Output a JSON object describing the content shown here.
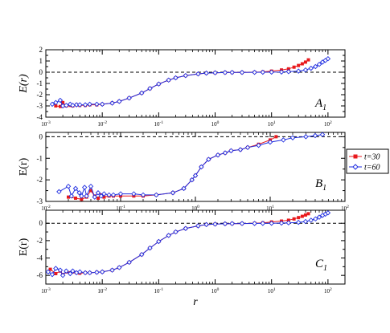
{
  "chart_data": [
    {
      "type": "line",
      "panel_label": "A",
      "panel_sub": "1",
      "ylabel": "E(r)",
      "xscale": "log",
      "xlim": [
        0.001,
        200
      ],
      "ylim": [
        -4,
        2
      ],
      "yticks": [
        -4,
        -3,
        -2,
        -1,
        0,
        1,
        2
      ],
      "xtick_exponents": [
        -3,
        -2,
        -1,
        0,
        1,
        2
      ],
      "reference_line": 0,
      "series": [
        {
          "name": "t=30",
          "color": "#e8191c",
          "marker": "square",
          "x": [
            0.0015,
            0.0018,
            0.002,
            0.0023,
            0.0027,
            0.003,
            0.0035,
            0.004,
            0.005,
            0.006,
            0.008,
            0.01,
            0.015,
            0.02,
            0.03,
            0.05,
            0.07,
            0.1,
            0.15,
            0.2,
            0.3,
            0.5,
            0.7,
            1,
            1.5,
            2,
            3,
            5,
            7,
            10,
            15,
            20,
            25,
            30,
            35,
            40,
            45
          ],
          "y": [
            -3.0,
            -3.05,
            -2.7,
            -3.0,
            -2.95,
            -3.0,
            -2.9,
            -2.95,
            -2.95,
            -2.9,
            -2.9,
            -2.85,
            -2.75,
            -2.6,
            -2.3,
            -1.85,
            -1.45,
            -1.05,
            -0.7,
            -0.5,
            -0.3,
            -0.15,
            -0.08,
            -0.05,
            -0.03,
            -0.02,
            -0.02,
            0.0,
            0.03,
            0.1,
            0.2,
            0.3,
            0.45,
            0.6,
            0.75,
            0.9,
            1.1
          ]
        },
        {
          "name": "t=60",
          "color": "#1f2de0",
          "marker": "diamond",
          "x": [
            0.0013,
            0.0015,
            0.0018,
            0.002,
            0.0023,
            0.0027,
            0.003,
            0.0035,
            0.004,
            0.005,
            0.006,
            0.008,
            0.01,
            0.015,
            0.02,
            0.03,
            0.05,
            0.07,
            0.1,
            0.15,
            0.2,
            0.3,
            0.5,
            0.7,
            1,
            1.5,
            2,
            3,
            5,
            7,
            10,
            15,
            20,
            30,
            40,
            50,
            60,
            70,
            80,
            90,
            100
          ],
          "y": [
            -2.85,
            -2.7,
            -2.5,
            -3.0,
            -2.95,
            -2.85,
            -2.95,
            -2.9,
            -2.9,
            -2.9,
            -2.85,
            -2.85,
            -2.85,
            -2.75,
            -2.6,
            -2.3,
            -1.85,
            -1.45,
            -1.05,
            -0.7,
            -0.5,
            -0.3,
            -0.15,
            -0.08,
            -0.05,
            -0.03,
            -0.02,
            -0.02,
            -0.01,
            0.0,
            0.01,
            0.02,
            0.05,
            0.1,
            0.2,
            0.35,
            0.5,
            0.7,
            0.9,
            1.05,
            1.2
          ]
        }
      ]
    },
    {
      "type": "line",
      "panel_label": "B",
      "panel_sub": "1",
      "ylabel": "E(r)",
      "xscale": "log",
      "xlim": [
        0.01,
        100
      ],
      "ylim": [
        -3,
        0.2
      ],
      "yticks": [
        -3,
        -2,
        -1,
        0
      ],
      "xtick_exponents": [
        -2,
        -1,
        0,
        1,
        2
      ],
      "reference_line": 0,
      "series": [
        {
          "name": "t=30",
          "color": "#e8191c",
          "marker": "square",
          "x": [
            0.02,
            0.025,
            0.03,
            0.035,
            0.04,
            0.045,
            0.05,
            0.055,
            0.06,
            0.07,
            0.08,
            0.1,
            0.15,
            0.2,
            0.3,
            0.5,
            0.7,
            0.9,
            1.0,
            1.2,
            1.5,
            2.0,
            2.5,
            3.0,
            4.0,
            5.0,
            7.0,
            10.0,
            12.0
          ],
          "y": [
            -2.8,
            -2.85,
            -2.9,
            -2.8,
            -2.5,
            -2.75,
            -2.85,
            -2.7,
            -2.8,
            -2.75,
            -2.75,
            -2.75,
            -2.75,
            -2.75,
            -2.7,
            -2.6,
            -2.4,
            -2.0,
            -1.8,
            -1.4,
            -1.05,
            -0.85,
            -0.75,
            -0.65,
            -0.6,
            -0.5,
            -0.35,
            -0.15,
            0.0
          ]
        },
        {
          "name": "t=60",
          "color": "#1f2de0",
          "marker": "diamond",
          "x": [
            0.015,
            0.02,
            0.022,
            0.025,
            0.028,
            0.03,
            0.033,
            0.035,
            0.04,
            0.045,
            0.05,
            0.055,
            0.06,
            0.07,
            0.08,
            0.1,
            0.15,
            0.2,
            0.3,
            0.5,
            0.7,
            0.9,
            1.0,
            1.2,
            1.5,
            2.0,
            2.5,
            3.0,
            4.0,
            5.0,
            7.0,
            10.0,
            15.0,
            20.0,
            30.0,
            40.0,
            50.0
          ],
          "y": [
            -2.55,
            -2.3,
            -2.75,
            -2.4,
            -2.6,
            -2.75,
            -2.35,
            -2.75,
            -2.3,
            -2.8,
            -2.6,
            -2.75,
            -2.65,
            -2.7,
            -2.7,
            -2.65,
            -2.65,
            -2.7,
            -2.7,
            -2.6,
            -2.4,
            -2.0,
            -1.8,
            -1.4,
            -1.05,
            -0.85,
            -0.75,
            -0.65,
            -0.6,
            -0.5,
            -0.4,
            -0.25,
            -0.15,
            -0.05,
            0.0,
            0.05,
            0.1
          ]
        }
      ]
    },
    {
      "type": "line",
      "panel_label": "C",
      "panel_sub": "1",
      "ylabel": "E(r)",
      "xlabel": "r",
      "xscale": "log",
      "xlim": [
        0.001,
        200
      ],
      "ylim": [
        -7,
        1.5
      ],
      "yticks": [
        -6,
        -4,
        -2,
        0
      ],
      "xtick_exponents": [
        -3,
        -2,
        -1,
        0,
        1,
        2
      ],
      "reference_line": 0,
      "series": [
        {
          "name": "t=30",
          "color": "#e8191c",
          "marker": "square",
          "x": [
            0.0012,
            0.0015,
            0.0018,
            0.002,
            0.0023,
            0.0027,
            0.003,
            0.0035,
            0.004,
            0.005,
            0.006,
            0.008,
            0.01,
            0.015,
            0.02,
            0.03,
            0.05,
            0.07,
            0.1,
            0.15,
            0.2,
            0.3,
            0.5,
            0.7,
            1,
            1.5,
            2,
            3,
            5,
            7,
            10,
            15,
            20,
            25,
            30,
            35,
            40,
            45
          ],
          "y": [
            -5.3,
            -5.8,
            -5.5,
            -5.9,
            -5.6,
            -5.7,
            -5.6,
            -5.7,
            -5.75,
            -5.7,
            -5.7,
            -5.65,
            -5.6,
            -5.4,
            -5.1,
            -4.5,
            -3.6,
            -2.85,
            -2.1,
            -1.4,
            -1.0,
            -0.6,
            -0.3,
            -0.15,
            -0.1,
            -0.06,
            -0.04,
            -0.03,
            0.0,
            0.05,
            0.15,
            0.25,
            0.35,
            0.5,
            0.65,
            0.8,
            0.95,
            1.1
          ]
        },
        {
          "name": "t=60",
          "color": "#1f2de0",
          "marker": "diamond",
          "x": [
            0.0011,
            0.0013,
            0.0015,
            0.0018,
            0.002,
            0.0023,
            0.0027,
            0.003,
            0.0035,
            0.004,
            0.005,
            0.006,
            0.008,
            0.01,
            0.015,
            0.02,
            0.03,
            0.05,
            0.07,
            0.1,
            0.15,
            0.2,
            0.3,
            0.5,
            0.7,
            1,
            1.5,
            2,
            3,
            5,
            7,
            10,
            15,
            20,
            30,
            40,
            50,
            60,
            70,
            80,
            90,
            100
          ],
          "y": [
            -5.6,
            -5.9,
            -5.2,
            -5.4,
            -6.0,
            -5.5,
            -5.8,
            -5.5,
            -5.7,
            -5.6,
            -5.7,
            -5.7,
            -5.65,
            -5.6,
            -5.4,
            -5.1,
            -4.5,
            -3.6,
            -2.85,
            -2.1,
            -1.4,
            -1.0,
            -0.6,
            -0.3,
            -0.15,
            -0.1,
            -0.06,
            -0.04,
            -0.03,
            -0.02,
            -0.01,
            0.0,
            0.02,
            0.05,
            0.1,
            0.2,
            0.35,
            0.5,
            0.7,
            0.9,
            1.05,
            1.2
          ]
        }
      ]
    }
  ],
  "legend": {
    "position": "right",
    "entries": [
      {
        "label": "t=30",
        "color": "#e8191c",
        "marker": "square"
      },
      {
        "label": "t=60",
        "color": "#1f2de0",
        "marker": "diamond"
      }
    ]
  }
}
